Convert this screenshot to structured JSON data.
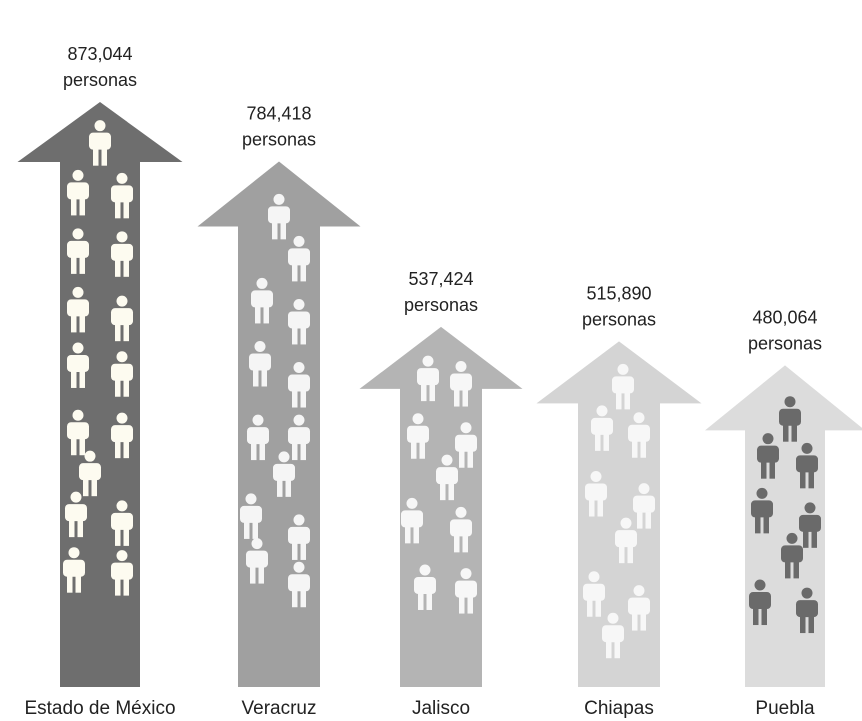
{
  "chart_data": {
    "type": "bar",
    "categories": [
      "Estado de México",
      "Veracruz",
      "Jalisco",
      "Chiapas",
      "Puebla"
    ],
    "values": [
      873044,
      784418,
      537424,
      515890,
      480064
    ],
    "value_labels": [
      "873,044",
      "784,418",
      "537,424",
      "515,890",
      "480,064"
    ],
    "unit_label": "personas",
    "arrow_colors": [
      "#6e6e6e",
      "#a0a0a0",
      "#b4b4b4",
      "#d4d4d4",
      "#dcdcdc"
    ],
    "icon_colors": [
      "#fdfbf0",
      "#f5f5f5",
      "#f7f7f7",
      "#f7f7f7",
      "#6a6a6a"
    ],
    "icon": "person-icon",
    "title": "",
    "xlabel": "",
    "ylabel": ""
  }
}
